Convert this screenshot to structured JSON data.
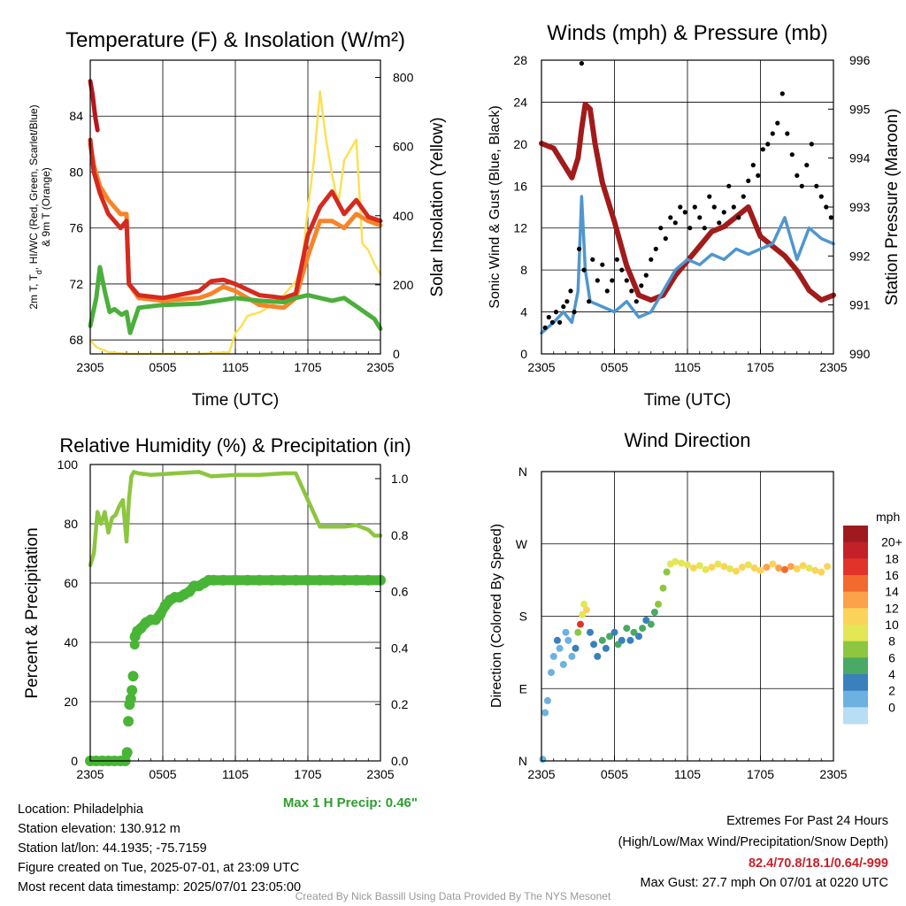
{
  "colors": {
    "temp": "#d42a20",
    "dew": "#4caf3c",
    "heat": "#b8161b",
    "t9": "#f7842a",
    "solar": "#fbe055",
    "wind": "#4f96cf",
    "gust": "#000000",
    "pres": "#a11b1b",
    "rh": "#8cc63f",
    "precip": "#48b536",
    "extremes": "#c91f26",
    "maxprecip": "#2e9e2e",
    "credit": "#999999"
  },
  "chart_data": [
    {
      "id": "temp",
      "type": "line",
      "title": "Temperature (F) & Insolation (W/m²)",
      "xlabel": "Time (UTC)",
      "ylabel": "2m T, T",
      "ylabel_sub": "d",
      "ylabel_rest": ", HI/WC (Red, Green, Scarlet/Blue)",
      "ylabel2": "& 9m T (Orange)",
      "y2label": "Solar Insolation (Yellow)",
      "xticks": [
        "2305",
        "0505",
        "1105",
        "1705",
        "2305"
      ],
      "x_range_hours": [
        0,
        24
      ],
      "ylim": [
        67,
        88
      ],
      "yticks": [
        68,
        72,
        76,
        80,
        84
      ],
      "y2lim": [
        0,
        850
      ],
      "y2ticks": [
        0,
        200,
        400,
        600,
        800
      ],
      "grid": true,
      "series": [
        {
          "key": "solar",
          "axis": "y2",
          "x": [
            0,
            0.5,
            1.5,
            3,
            6,
            9,
            11.5,
            12,
            12.5,
            13,
            14,
            15,
            16,
            17,
            17.5,
            18,
            18.5,
            19,
            19.5,
            20,
            20.5,
            21,
            22,
            22.5,
            23,
            23.5,
            24
          ],
          "values": [
            40,
            20,
            5,
            0,
            0,
            0,
            5,
            60,
            80,
            110,
            120,
            140,
            170,
            210,
            260,
            420,
            560,
            760,
            620,
            520,
            430,
            560,
            620,
            320,
            300,
            260,
            230
          ]
        },
        {
          "key": "t9",
          "axis": "y",
          "x": [
            0,
            0.3,
            0.8,
            1.5,
            2.5,
            3,
            3.2,
            4,
            6,
            9,
            10,
            11,
            12,
            14,
            16,
            17,
            18,
            19,
            20,
            21,
            22,
            23,
            24
          ],
          "values": [
            82,
            80.5,
            79,
            78,
            77,
            77,
            72,
            71,
            70.8,
            71,
            71.3,
            71.8,
            71.5,
            70.5,
            70.3,
            71,
            74,
            76.5,
            76.5,
            76,
            77,
            76.5,
            76.2
          ]
        },
        {
          "key": "temp",
          "axis": "y",
          "x": [
            0,
            0.3,
            0.8,
            1.5,
            2.5,
            3,
            3.2,
            4,
            6,
            9,
            10,
            11,
            12,
            14,
            16,
            17,
            18,
            19,
            20,
            21,
            22,
            23,
            24
          ],
          "values": [
            82.3,
            80,
            78.5,
            77,
            76,
            76.5,
            72,
            71.2,
            71,
            71.5,
            72.2,
            72.3,
            72,
            71.2,
            71,
            71.3,
            75.5,
            77.5,
            78.6,
            77,
            78,
            76.8,
            76.5
          ]
        },
        {
          "key": "heat",
          "axis": "y",
          "x": [
            0,
            0.2,
            0.4,
            0.6
          ],
          "values": [
            86.5,
            85.5,
            84,
            83
          ]
        },
        {
          "key": "dew",
          "axis": "y",
          "x": [
            0,
            0.5,
            0.8,
            1.2,
            1.6,
            2,
            2.6,
            3,
            3.3,
            4,
            6,
            9,
            12,
            14,
            16,
            17,
            18,
            19,
            20,
            21,
            22,
            23,
            23.5,
            24
          ],
          "values": [
            69,
            71,
            73.2,
            71.5,
            70,
            70.2,
            69.8,
            70,
            68.5,
            70.3,
            70.5,
            70.6,
            71,
            70.8,
            70.7,
            71,
            71.2,
            71,
            70.8,
            71,
            70.4,
            69.8,
            69.5,
            68.8
          ]
        }
      ]
    },
    {
      "id": "wind",
      "type": "line",
      "title": "Winds (mph) & Pressure (mb)",
      "xlabel": "Time (UTC)",
      "ylabel": "Sonic Wind & Gust (Blue, Black)",
      "y2label": "Station Pressure (Maroon)",
      "xticks": [
        "2305",
        "0505",
        "1105",
        "1705",
        "2305"
      ],
      "x_range_hours": [
        0,
        24
      ],
      "ylim": [
        0,
        28
      ],
      "yticks": [
        0,
        4,
        8,
        12,
        16,
        20,
        24,
        28
      ],
      "y2lim": [
        990,
        996
      ],
      "y2ticks": [
        990,
        991,
        992,
        993,
        994,
        995,
        996
      ],
      "grid": true,
      "series": [
        {
          "key": "pres",
          "axis": "y2",
          "x": [
            0,
            1,
            2,
            2.5,
            3,
            3.3,
            3.6,
            4,
            4.4,
            5,
            6,
            7,
            8,
            9,
            10,
            11,
            12,
            13,
            14,
            15,
            16,
            17,
            17.5,
            18,
            19,
            20,
            21,
            22,
            23,
            24
          ],
          "values": [
            994.3,
            994.2,
            993.8,
            993.6,
            994,
            994.6,
            995.1,
            995,
            994.3,
            993.5,
            992.7,
            991.8,
            991.2,
            991.1,
            991.2,
            991.6,
            991.9,
            992.2,
            992.5,
            992.6,
            992.8,
            993,
            992.7,
            992.4,
            992.2,
            992,
            991.7,
            991.3,
            991.1,
            991.2
          ]
        },
        {
          "key": "wind",
          "axis": "y",
          "x": [
            0,
            1,
            1.8,
            2.5,
            3,
            3.3,
            3.6,
            4,
            5,
            6,
            7,
            8,
            9,
            10,
            11,
            12,
            13,
            14,
            15,
            16,
            17,
            18,
            19,
            20,
            21,
            22,
            23,
            24
          ],
          "values": [
            2,
            3,
            4,
            3,
            6,
            15,
            8,
            5,
            4.5,
            4,
            5,
            3.5,
            4,
            6,
            8,
            9,
            8.5,
            9.5,
            9,
            10,
            9.5,
            10,
            10.5,
            13,
            9,
            12,
            11,
            10.5
          ]
        },
        {
          "key": "gust",
          "type": "scatter",
          "axis": "y",
          "x": [
            0.3,
            0.6,
            0.9,
            1.2,
            1.5,
            1.8,
            2.1,
            2.4,
            2.7,
            3.1,
            3.3,
            3.5,
            3.9,
            4.2,
            4.6,
            5,
            5.4,
            5.8,
            6.2,
            6.6,
            7,
            7.4,
            7.8,
            8.2,
            8.6,
            9,
            9.4,
            9.8,
            10.2,
            10.6,
            11,
            11.4,
            11.8,
            12.2,
            12.6,
            13,
            13.4,
            13.8,
            14.2,
            14.6,
            15,
            15.4,
            15.8,
            16.2,
            16.6,
            17,
            17.4,
            17.8,
            18.2,
            18.6,
            19,
            19.4,
            19.8,
            20.2,
            20.6,
            21,
            21.4,
            21.8,
            22.2,
            22.6,
            23,
            23.4,
            23.8
          ],
          "values": [
            2.5,
            3.5,
            3,
            4,
            3,
            4.5,
            5,
            6,
            4,
            10,
            27.7,
            8,
            5,
            9,
            7,
            8.5,
            6,
            7,
            9,
            8,
            7,
            6,
            5,
            6.5,
            7.5,
            9,
            10,
            12,
            11,
            13,
            12.5,
            14,
            13.5,
            12,
            14,
            13,
            12,
            15,
            14,
            12.5,
            13.5,
            16,
            14,
            13,
            15,
            16.5,
            18,
            17,
            19.5,
            20,
            21,
            22,
            24.8,
            21,
            19,
            17,
            16,
            18,
            20,
            16,
            15,
            14,
            13
          ]
        }
      ]
    },
    {
      "id": "rh",
      "type": "line",
      "title": "Relative Humidity (%) & Precipitation (in)",
      "ylabel": "Percent & Precipitation",
      "xticks": [
        "2305",
        "0505",
        "1105",
        "1705",
        "2305"
      ],
      "x_range_hours": [
        0,
        24
      ],
      "ylim": [
        0,
        100
      ],
      "yticks": [
        0,
        20,
        40,
        60,
        80,
        100
      ],
      "y2lim": [
        0,
        1.05
      ],
      "y2ticks": [
        "0.0",
        "0.2",
        "0.4",
        "0.6",
        "0.8",
        "1.0"
      ],
      "grid": true,
      "series": [
        {
          "key": "rh",
          "axis": "y",
          "x": [
            0,
            0.3,
            0.6,
            0.9,
            1.2,
            1.5,
            1.8,
            2.1,
            2.4,
            2.7,
            3,
            3.2,
            3.4,
            3.6,
            4,
            5,
            7,
            9,
            10,
            12,
            14,
            16,
            17,
            18,
            19,
            20,
            21,
            22,
            23,
            23.5,
            24
          ],
          "values": [
            66,
            70,
            84,
            80,
            84,
            77,
            82,
            83,
            86,
            88,
            74,
            88,
            96,
            97.5,
            97,
            96.5,
            97,
            97.5,
            96,
            96.5,
            96.5,
            97,
            97,
            88,
            79,
            79,
            79,
            79.5,
            78,
            76,
            76
          ]
        },
        {
          "key": "precip",
          "axis": "y2",
          "type": "scatter",
          "x": [
            0,
            0.5,
            1,
            1.5,
            2,
            2.5,
            2.9,
            3.05,
            3.15,
            3.25,
            3.35,
            3.45,
            3.55,
            3.7,
            3.9,
            4.2,
            4.6,
            5,
            5.4,
            5.8,
            6.2,
            6.6,
            7,
            7.4,
            7.8,
            8.2,
            8.6,
            9,
            9.4,
            9.8,
            10.2,
            11,
            12,
            13,
            14,
            15,
            16,
            17,
            18,
            19,
            20,
            21,
            22,
            23,
            24
          ],
          "values": [
            0,
            0,
            0,
            0,
            0,
            0,
            0,
            0.03,
            0.14,
            0.2,
            0.22,
            0.25,
            0.3,
            0.44,
            0.46,
            0.47,
            0.49,
            0.5,
            0.5,
            0.52,
            0.55,
            0.57,
            0.58,
            0.58,
            0.59,
            0.6,
            0.62,
            0.62,
            0.63,
            0.64,
            0.64,
            0.64,
            0.64,
            0.64,
            0.64,
            0.64,
            0.64,
            0.64,
            0.64,
            0.64,
            0.64,
            0.64,
            0.64,
            0.64,
            0.64
          ]
        }
      ]
    },
    {
      "id": "dir",
      "type": "scatter",
      "title": "Wind Direction",
      "ylabel": "Direction (Colored By Speed)",
      "xticks": [
        "2305",
        "0505",
        "1105",
        "1705",
        "2305"
      ],
      "x_range_hours": [
        0,
        24
      ],
      "ylim": [
        0,
        360
      ],
      "yticks": [
        "N",
        "E",
        "S",
        "W",
        "N"
      ],
      "grid": true,
      "legend_title": "mph",
      "legend_labels": [
        "20+",
        "18",
        "16",
        "14",
        "12",
        "10",
        "8",
        "6",
        "4",
        "2",
        "0"
      ],
      "legend_colors": [
        "#9e1a1e",
        "#c4202a",
        "#e2332b",
        "#f26a2d",
        "#fba24a",
        "#fbd359",
        "#e3e655",
        "#8dc63f",
        "#4aa964",
        "#3a80bd",
        "#6cb1e0",
        "#b7def4"
      ],
      "x": [
        0.1,
        0.3,
        0.5,
        0.8,
        1,
        1.3,
        1.5,
        1.8,
        2,
        2.2,
        2.5,
        2.8,
        3,
        3.2,
        3.35,
        3.5,
        3.7,
        4,
        4.3,
        4.6,
        5,
        5.3,
        5.6,
        6,
        6.3,
        6.6,
        7,
        7.3,
        7.6,
        8,
        8.3,
        8.6,
        9,
        9.3,
        9.6,
        10,
        10.3,
        10.6,
        11,
        11.5,
        12,
        12.5,
        13,
        13.5,
        14,
        14.5,
        15,
        15.5,
        16,
        16.5,
        17,
        17.5,
        18,
        18.5,
        19,
        19.5,
        20,
        20.5,
        21,
        21.5,
        22,
        22.5,
        23,
        23.5
      ],
      "values": [
        2,
        60,
        75,
        110,
        130,
        150,
        140,
        120,
        160,
        150,
        130,
        140,
        160,
        170,
        182,
        195,
        188,
        160,
        145,
        130,
        150,
        140,
        155,
        160,
        145,
        150,
        165,
        150,
        160,
        155,
        165,
        175,
        170,
        185,
        195,
        215,
        235,
        245,
        248,
        246,
        244,
        240,
        243,
        238,
        241,
        245,
        242,
        239,
        236,
        241,
        244,
        240,
        237,
        241,
        245,
        240,
        238,
        242,
        239,
        243,
        240,
        237,
        235,
        242
      ],
      "speeds": [
        1,
        2,
        2,
        2,
        1,
        3,
        2,
        1,
        2,
        1,
        2,
        3,
        7,
        18,
        10,
        9,
        11,
        4,
        4,
        4,
        5,
        4,
        6,
        4,
        5,
        4,
        5,
        4,
        5,
        4,
        5,
        3,
        5,
        6,
        7,
        7,
        8,
        9,
        9,
        10,
        9,
        11,
        10,
        10,
        12,
        9,
        11,
        10,
        12,
        11,
        10,
        12,
        11,
        13,
        12,
        14,
        15,
        13,
        12,
        11,
        10,
        12,
        11,
        12
      ]
    }
  ],
  "max_precip_text": "Max 1 H Precip: 0.46\"",
  "info": {
    "location": "Location: Philadelphia",
    "elevation": "Station elevation: 130.912 m",
    "latlon": "Station lat/lon: 44.1935; -75.7159",
    "created": "Figure created on Tue, 2025-07-01, at 23:09 UTC",
    "recent": "Most recent data timestamp: 2025/07/01 23:05:00"
  },
  "extremes": {
    "title": "Extremes For Past 24 Hours",
    "subtitle": "(High/Low/Max Wind/Precipitation/Snow Depth)",
    "values": "82.4/70.8/18.1/0.64/-999",
    "gust": "Max Gust: 27.7 mph On 07/01 at 0220 UTC"
  },
  "credit": "Created By Nick Bassill Using Data Provided By The NYS Mesonet"
}
